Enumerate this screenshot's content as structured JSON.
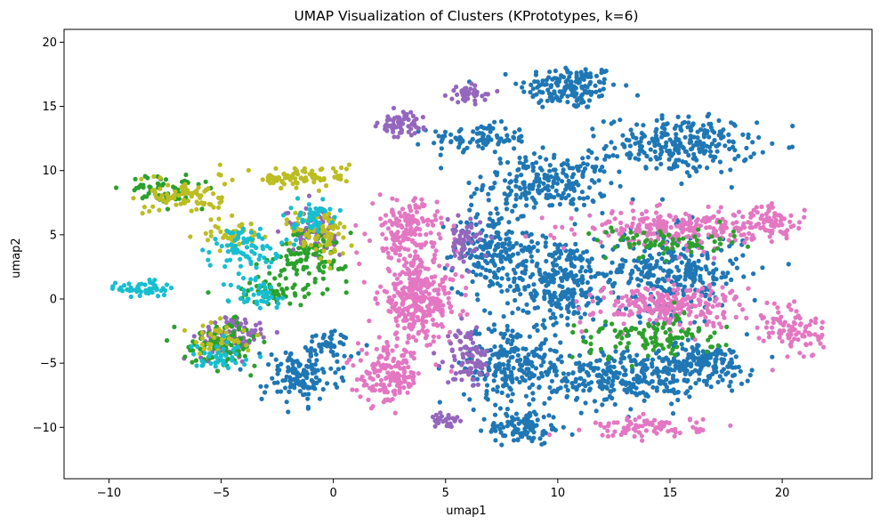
{
  "chart_data": {
    "type": "scatter",
    "title": "UMAP Visualization of Clusters (KPrototypes, k=6)",
    "xlabel": "umap1",
    "ylabel": "umap2",
    "xlim": [
      -12,
      24
    ],
    "ylim": [
      -14,
      21
    ],
    "xticks": [
      -10,
      -5,
      0,
      5,
      10,
      15,
      20
    ],
    "yticks": [
      -10,
      -5,
      0,
      5,
      10,
      15,
      20
    ],
    "grid": false,
    "legend": "none",
    "series": [
      {
        "color": "#1f77b4",
        "regions": [
          {
            "cx": 10.5,
            "cy": 16.5,
            "sx": 2.0,
            "sy": 1.6,
            "n": 160
          },
          {
            "cx": 6.5,
            "cy": 12.5,
            "sx": 2.0,
            "sy": 1.0,
            "n": 90
          },
          {
            "cx": 9.5,
            "cy": 9.0,
            "sx": 2.5,
            "sy": 2.0,
            "n": 230
          },
          {
            "cx": 15.5,
            "cy": 12.0,
            "sx": 3.0,
            "sy": 2.0,
            "n": 260
          },
          {
            "cx": 7.0,
            "cy": 4.0,
            "sx": 1.5,
            "sy": 3.0,
            "n": 180
          },
          {
            "cx": 10.0,
            "cy": 1.5,
            "sx": 2.0,
            "sy": 3.0,
            "n": 260
          },
          {
            "cx": 15.0,
            "cy": 2.0,
            "sx": 3.0,
            "sy": 3.0,
            "n": 320
          },
          {
            "cx": 8.0,
            "cy": -5.0,
            "sx": 2.0,
            "sy": 3.0,
            "n": 250
          },
          {
            "cx": 13.0,
            "cy": -6.0,
            "sx": 3.0,
            "sy": 2.0,
            "n": 280
          },
          {
            "cx": 16.5,
            "cy": -5.0,
            "sx": 2.0,
            "sy": 1.5,
            "n": 150
          },
          {
            "cx": 8.5,
            "cy": -10.0,
            "sx": 1.5,
            "sy": 1.2,
            "n": 100
          },
          {
            "cx": -1.5,
            "cy": -6.0,
            "sx": 1.5,
            "sy": 2.0,
            "n": 140
          },
          {
            "cx": 0.0,
            "cy": -3.5,
            "sx": 0.8,
            "sy": 1.0,
            "n": 40
          }
        ]
      },
      {
        "color": "#e377c2",
        "regions": [
          {
            "cx": 3.2,
            "cy": 5.5,
            "sx": 1.3,
            "sy": 2.0,
            "n": 160
          },
          {
            "cx": 3.8,
            "cy": 0.0,
            "sx": 1.6,
            "sy": 3.0,
            "n": 320
          },
          {
            "cx": 2.5,
            "cy": -6.0,
            "sx": 1.3,
            "sy": 2.0,
            "n": 160
          },
          {
            "cx": 15.0,
            "cy": 5.5,
            "sx": 3.5,
            "sy": 1.2,
            "n": 230
          },
          {
            "cx": 15.0,
            "cy": -0.5,
            "sx": 3.0,
            "sy": 1.5,
            "n": 230
          },
          {
            "cx": 20.5,
            "cy": -2.5,
            "sx": 1.2,
            "sy": 2.0,
            "n": 90
          },
          {
            "cx": 14.0,
            "cy": -10.0,
            "sx": 2.2,
            "sy": 0.7,
            "n": 90
          },
          {
            "cx": 19.5,
            "cy": 6.0,
            "sx": 1.5,
            "sy": 1.2,
            "n": 80
          }
        ]
      },
      {
        "color": "#9467bd",
        "regions": [
          {
            "cx": 3.0,
            "cy": 13.5,
            "sx": 0.9,
            "sy": 0.9,
            "n": 60
          },
          {
            "cx": 6.0,
            "cy": 16.0,
            "sx": 0.8,
            "sy": 0.6,
            "n": 40
          },
          {
            "cx": 5.8,
            "cy": 4.5,
            "sx": 0.7,
            "sy": 1.5,
            "n": 60
          },
          {
            "cx": 6.0,
            "cy": -4.5,
            "sx": 0.9,
            "sy": 2.0,
            "n": 80
          },
          {
            "cx": 5.0,
            "cy": -9.5,
            "sx": 0.6,
            "sy": 0.8,
            "n": 30
          },
          {
            "cx": -4.5,
            "cy": -3.0,
            "sx": 1.5,
            "sy": 1.5,
            "n": 90
          },
          {
            "cx": -1.0,
            "cy": 5.5,
            "sx": 1.0,
            "sy": 1.5,
            "n": 70
          }
        ]
      },
      {
        "color": "#2ca02c",
        "regions": [
          {
            "cx": -5.0,
            "cy": -3.5,
            "sx": 1.5,
            "sy": 1.5,
            "n": 100
          },
          {
            "cx": -1.0,
            "cy": 3.5,
            "sx": 1.5,
            "sy": 2.0,
            "n": 110
          },
          {
            "cx": -7.5,
            "cy": 8.5,
            "sx": 1.5,
            "sy": 1.0,
            "n": 60
          },
          {
            "cx": 14.0,
            "cy": -3.0,
            "sx": 3.0,
            "sy": 1.5,
            "n": 110
          },
          {
            "cx": 15.0,
            "cy": 4.5,
            "sx": 3.0,
            "sy": 1.0,
            "n": 70
          },
          {
            "cx": -3.0,
            "cy": 0.5,
            "sx": 1.5,
            "sy": 1.0,
            "n": 50
          }
        ]
      },
      {
        "color": "#bcbd22",
        "regions": [
          {
            "cx": -6.5,
            "cy": 8.0,
            "sx": 1.5,
            "sy": 1.2,
            "n": 80
          },
          {
            "cx": -1.5,
            "cy": 9.5,
            "sx": 2.0,
            "sy": 0.8,
            "n": 90
          },
          {
            "cx": -0.5,
            "cy": 5.0,
            "sx": 1.2,
            "sy": 2.0,
            "n": 80
          },
          {
            "cx": -4.5,
            "cy": 5.0,
            "sx": 1.2,
            "sy": 1.2,
            "n": 50
          },
          {
            "cx": -5.0,
            "cy": -3.0,
            "sx": 1.2,
            "sy": 1.2,
            "n": 40
          }
        ]
      },
      {
        "color": "#17becf",
        "regions": [
          {
            "cx": -8.5,
            "cy": 0.8,
            "sx": 1.0,
            "sy": 0.6,
            "n": 50
          },
          {
            "cx": -4.0,
            "cy": 4.0,
            "sx": 1.5,
            "sy": 1.5,
            "n": 80
          },
          {
            "cx": -1.0,
            "cy": 6.5,
            "sx": 0.8,
            "sy": 1.0,
            "n": 50
          },
          {
            "cx": -3.5,
            "cy": 0.5,
            "sx": 1.2,
            "sy": 1.0,
            "n": 40
          },
          {
            "cx": -5.0,
            "cy": -4.5,
            "sx": 1.2,
            "sy": 1.0,
            "n": 40
          }
        ]
      }
    ]
  }
}
